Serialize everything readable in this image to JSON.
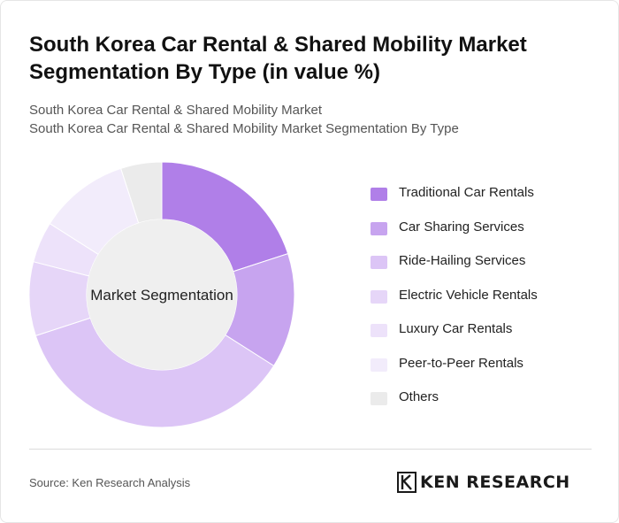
{
  "title": "South Korea Car Rental & Shared Mobility Market Segmentation By Type (in value %)",
  "subtitle_line1": "South Korea Car Rental & Shared Mobility Market",
  "subtitle_line2": "South Korea Car Rental & Shared Mobility Market Segmentation By Type",
  "source": "Source: Ken Research Analysis",
  "logo_text": "KEN RESEARCH",
  "chart_data": {
    "type": "pie",
    "style": "donut",
    "center_label": "Market Segmentation",
    "categories": [
      "Traditional Car Rentals",
      "Car Sharing Services",
      "Ride-Hailing Services",
      "Electric Vehicle Rentals",
      "Luxury Car Rentals",
      "Peer-to-Peer Rentals",
      "Others"
    ],
    "values": [
      20,
      14,
      36,
      9,
      5,
      11,
      5
    ],
    "colors": [
      "#b07fe8",
      "#c7a4ef",
      "#dcc5f6",
      "#e6d6f8",
      "#ede2fa",
      "#f2ecfb",
      "#ebebeb"
    ],
    "legend_position": "right"
  }
}
